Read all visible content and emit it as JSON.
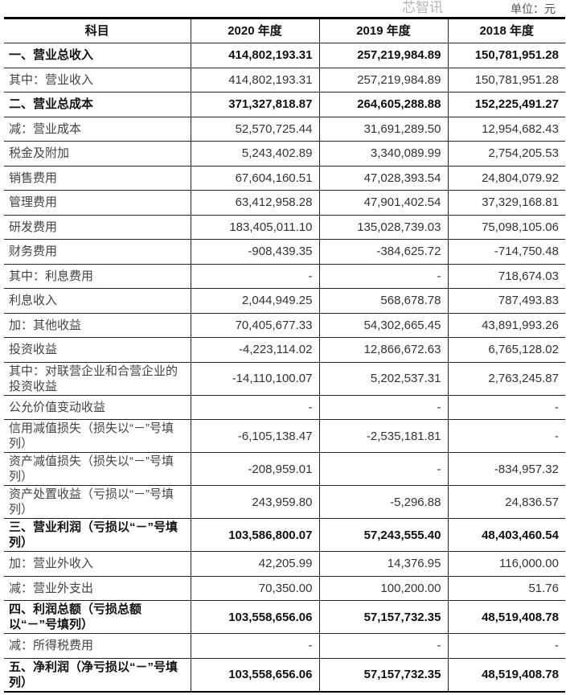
{
  "unit_label": "单位：元",
  "table": {
    "headers": [
      "科目",
      "2020 年度",
      "2019 年度",
      "2018 年度"
    ],
    "rows": [
      {
        "label": "一、营业总收入",
        "bold": true,
        "values": [
          "414,802,193.31",
          "257,219,984.89",
          "150,781,951.28"
        ]
      },
      {
        "label": "其中：营业收入",
        "bold": false,
        "values": [
          "414,802,193.31",
          "257,219,984.89",
          "150,781,951.28"
        ]
      },
      {
        "label": "二、营业总成本",
        "bold": true,
        "values": [
          "371,327,818.87",
          "264,605,288.88",
          "152,225,491.27"
        ]
      },
      {
        "label": "减：营业成本",
        "bold": false,
        "values": [
          "52,570,725.44",
          "31,691,289.50",
          "12,954,682.43"
        ]
      },
      {
        "label": "税金及附加",
        "bold": false,
        "values": [
          "5,243,402.89",
          "3,340,089.99",
          "2,754,205.53"
        ]
      },
      {
        "label": "销售费用",
        "bold": false,
        "values": [
          "67,604,160.51",
          "47,028,393.54",
          "24,804,079.92"
        ]
      },
      {
        "label": "管理费用",
        "bold": false,
        "values": [
          "63,412,958.28",
          "47,901,402.54",
          "37,329,168.81"
        ]
      },
      {
        "label": "研发费用",
        "bold": false,
        "values": [
          "183,405,011.10",
          "135,028,739.03",
          "75,098,105.06"
        ]
      },
      {
        "label": "财务费用",
        "bold": false,
        "values": [
          "-908,439.35",
          "-384,625.72",
          "-714,750.48"
        ]
      },
      {
        "label": "其中：利息费用",
        "bold": false,
        "values": [
          "-",
          "-",
          "718,674.03"
        ]
      },
      {
        "label": "利息收入",
        "bold": false,
        "values": [
          "2,044,949.25",
          "568,678.78",
          "787,493.83"
        ]
      },
      {
        "label": "加：其他收益",
        "bold": false,
        "values": [
          "70,405,677.33",
          "54,302,665.45",
          "43,891,993.26"
        ]
      },
      {
        "label": "投资收益",
        "bold": false,
        "values": [
          "-4,223,114.02",
          "12,866,672.63",
          "6,765,128.02"
        ]
      },
      {
        "label": "其中：对联营企业和合营企业的投资收益",
        "bold": false,
        "double": true,
        "values": [
          "-14,110,100.07",
          "5,202,537.31",
          "2,763,245.87"
        ]
      },
      {
        "label": "公允价值变动收益",
        "bold": false,
        "values": [
          "-",
          "-",
          "-"
        ]
      },
      {
        "label": "信用减值损失（损失以“－”号填列）",
        "bold": false,
        "double": true,
        "values": [
          "-6,105,138.47",
          "-2,535,181.81",
          "-"
        ]
      },
      {
        "label": "资产减值损失（损失以“－”号填列）",
        "bold": false,
        "double": true,
        "values": [
          "-208,959.01",
          "-",
          "-834,957.32"
        ]
      },
      {
        "label": "资产处置收益（亏损以“－”号填列）",
        "bold": false,
        "double": true,
        "values": [
          "243,959.80",
          "-5,296.88",
          "24,836.57"
        ]
      },
      {
        "label": "三、营业利润（亏损以“－”号填列）",
        "bold": true,
        "double": true,
        "values": [
          "103,586,800.07",
          "57,243,555.40",
          "48,403,460.54"
        ]
      },
      {
        "label": "加：营业外收入",
        "bold": false,
        "values": [
          "42,205.99",
          "14,376.95",
          "116,000.00"
        ]
      },
      {
        "label": "减：营业外支出",
        "bold": false,
        "values": [
          "70,350.00",
          "100,200.00",
          "51.76"
        ]
      },
      {
        "label": "四、利润总额（亏损总额以“－”号填列）",
        "bold": true,
        "double": true,
        "values": [
          "103,558,656.06",
          "57,157,732.35",
          "48,519,408.78"
        ]
      },
      {
        "label": "减：所得税费用",
        "bold": false,
        "values": [
          "-",
          "-",
          "-"
        ]
      },
      {
        "label": "五、净利润（净亏损以“－”号填列）",
        "bold": true,
        "double": true,
        "values": [
          "103,558,656.06",
          "57,157,732.35",
          "48,519,408.78"
        ]
      }
    ]
  },
  "watermark": "芯智讯"
}
